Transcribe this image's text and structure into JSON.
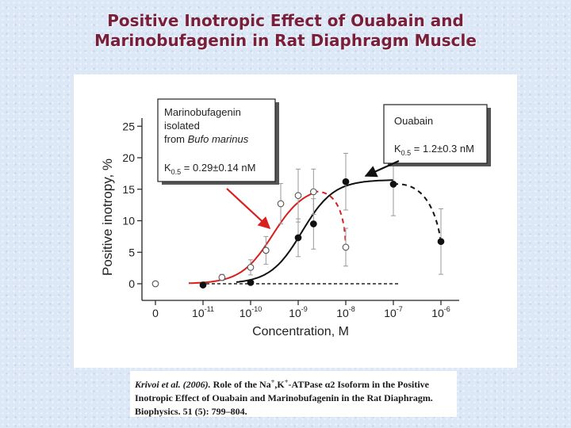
{
  "slide": {
    "title_line1": "Positive Inotropic Effect of Ouabain and",
    "title_line2": "Marinobufagenin in Rat Diaphragm Muscle"
  },
  "citation": {
    "authors": "Krivoi et al. (2006).",
    "text_part1": " Role of the Na",
    "text_part2": ",K",
    "text_part3": "-ATPase ",
    "alpha": "α",
    "text_part4": "2 Isoform in the Positive Inotropic Effect of Ouabain and Marinobufagenin in the Rat Diaphragm. Biophysics. 51 (5): 799–804.",
    "superscript": "+"
  },
  "chart_data": {
    "type": "scatter",
    "title": "",
    "xlabel": "Concentration, M",
    "ylabel": "Positive inotropy, %",
    "xscale": "log",
    "xlim": [
      0,
      1e-06
    ],
    "ylim": [
      -2,
      26
    ],
    "x_ticks": [
      {
        "value": 0,
        "base": "0",
        "exp": ""
      },
      {
        "value": 1e-11,
        "base": "10",
        "exp": "-11"
      },
      {
        "value": 1e-10,
        "base": "10",
        "exp": "-10"
      },
      {
        "value": 1e-09,
        "base": "10",
        "exp": "-9"
      },
      {
        "value": 1e-08,
        "base": "10",
        "exp": "-8"
      },
      {
        "value": 1e-07,
        "base": "10",
        "exp": "-7"
      },
      {
        "value": 1e-06,
        "base": "10",
        "exp": "-6"
      }
    ],
    "y_ticks": [
      {
        "value": 0,
        "label": "0"
      },
      {
        "value": 5,
        "label": "5"
      },
      {
        "value": 10,
        "label": "10"
      },
      {
        "value": 15,
        "label": "15"
      },
      {
        "value": 20,
        "label": "20"
      },
      {
        "value": 25,
        "label": "25"
      }
    ],
    "grid": false,
    "series": [
      {
        "compound": "marinobufagenin",
        "marker": "open-circle",
        "color": "#d81e1e",
        "points": [
          {
            "x": 0,
            "y": 0,
            "err": 0
          },
          {
            "x": 2.5e-11,
            "y": 1.0,
            "err": 0.5
          },
          {
            "x": 1e-10,
            "y": 2.6,
            "err": 1.2
          },
          {
            "x": 2.1e-10,
            "y": 5.3,
            "err": 2.2
          },
          {
            "x": 4.3e-10,
            "y": 12.7,
            "err": 3.2
          },
          {
            "x": 1e-09,
            "y": 14.0,
            "err": 4.2
          },
          {
            "x": 2.1e-09,
            "y": 14.6,
            "err": 3.6
          },
          {
            "x": 1e-08,
            "y": 5.8,
            "err": 3.0
          }
        ],
        "fit": {
          "top": 15.5,
          "k05": 2.9e-10,
          "hill": 1.3
        }
      },
      {
        "compound": "ouabain",
        "marker": "filled-circle",
        "color": "#111111",
        "points": [
          {
            "x": 1e-11,
            "y": -0.2,
            "err": 0
          },
          {
            "x": 1e-10,
            "y": 0.2,
            "err": 0
          },
          {
            "x": 1e-09,
            "y": 7.3,
            "err": 3.0
          },
          {
            "x": 2.1e-09,
            "y": 9.5,
            "err": 4.0
          },
          {
            "x": 1e-08,
            "y": 16.2,
            "err": 4.5
          },
          {
            "x": 1e-07,
            "y": 15.8,
            "err": 5.0
          },
          {
            "x": 1e-06,
            "y": 6.7,
            "err": 5.2
          }
        ],
        "fit": {
          "top": 16.5,
          "k05": 1.2e-09,
          "hill": 1.3
        }
      }
    ],
    "annotations": {
      "mbg": {
        "line1": "Marinobufagenin",
        "line2": "isolated",
        "line3_prefix": "from ",
        "line3_italic": "Bufo marinus",
        "k_main": "K",
        "k_sub": "0.5",
        "k_value": " = 0.29±0.14 nM"
      },
      "ouabain": {
        "line1": "Ouabain",
        "k_main": "K",
        "k_sub": "0.5",
        "k_value": " = 1.2±0.3 nM"
      }
    }
  }
}
